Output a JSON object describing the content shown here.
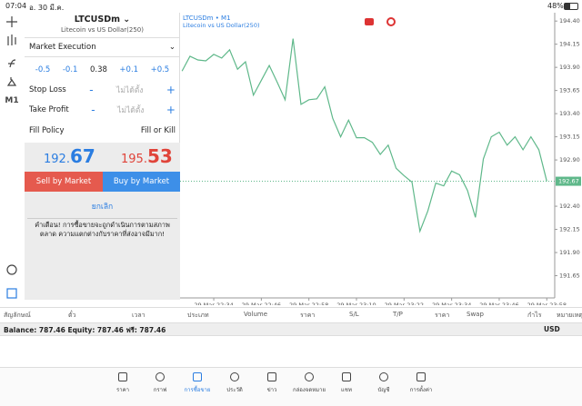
{
  "status_bar": {
    "time": "07:04",
    "date": "อ. 30 มี.ค.",
    "battery": "48%"
  },
  "toolbar": {
    "timeframe": "M1"
  },
  "order_panel": {
    "symbol": "LTCUSDm",
    "description": "Litecoin vs US Dollar(250)",
    "execution": "Market Execution",
    "volume_buttons": [
      "-0.5",
      "-0.1",
      "0.38",
      "+0.1",
      "+0.5"
    ],
    "stop_loss": {
      "label": "Stop Loss",
      "value": "ไม่ได้ตั้ง"
    },
    "take_profit": {
      "label": "Take Profit",
      "value": "ไม่ได้ตั้ง"
    },
    "fill_policy": {
      "label": "Fill Policy",
      "value": "Fill or Kill"
    },
    "bid": {
      "main": "192.",
      "big": "67"
    },
    "ask": {
      "main": "195.",
      "big": "53"
    },
    "sell_button": "Sell by Market",
    "buy_button": "Buy by Market",
    "cancel": "ยกเลิก",
    "warning": "คำเตือน! การซื้อขายจะถูกดำเนินการตามสภาพตลาด ความแตกต่างกับราคาที่ส่งอาจมีมาก!"
  },
  "chart_data": {
    "type": "line",
    "title": "LTCUSDm • M1",
    "subtitle": "Litecoin vs US Dollar(250)",
    "x": [
      1346,
      1348,
      1350,
      1352,
      1354,
      1356,
      1358,
      1360,
      1362,
      1364,
      1366,
      1368,
      1370,
      1372,
      1374,
      1376,
      1378,
      1380,
      1382,
      1384,
      1386,
      1388,
      1390,
      1392,
      1394,
      1396,
      1398,
      1400,
      1402,
      1404,
      1406,
      1408,
      1410,
      1412,
      1414,
      1416,
      1418,
      1420,
      1422,
      1424,
      1426,
      1428,
      1430,
      1432,
      1434,
      1436,
      1438
    ],
    "series": [
      {
        "color": "#5fb88a",
        "values": [
          193.86,
          194.02,
          193.98,
          193.97,
          194.04,
          194.0,
          194.09,
          193.88,
          193.96,
          193.6,
          193.76,
          193.92,
          193.74,
          193.55,
          194.21,
          193.5,
          193.55,
          193.56,
          193.69,
          193.35,
          193.15,
          193.33,
          193.14,
          193.14,
          193.09,
          192.96,
          193.06,
          192.81,
          192.73,
          192.66,
          192.13,
          192.35,
          192.65,
          192.62,
          192.78,
          192.74,
          192.57,
          192.28,
          192.91,
          193.15,
          193.2,
          193.06,
          193.15,
          193.01,
          193.15,
          193.01,
          192.67
        ]
      }
    ],
    "current_price": 192.67,
    "xlim": [
      1345.5,
      1440
    ],
    "xticks": [
      {
        "value": 1354,
        "label": "29 Mar 22:34"
      },
      {
        "value": 1366,
        "label": "29 Mar 22:46"
      },
      {
        "value": 1378,
        "label": "29 Mar 22:58"
      },
      {
        "value": 1390,
        "label": "29 Mar 23:10"
      },
      {
        "value": 1402,
        "label": "29 Mar 23:22"
      },
      {
        "value": 1414,
        "label": "29 Mar 23:34"
      },
      {
        "value": 1426,
        "label": "29 Mar 23:46"
      },
      {
        "value": 1438,
        "label": "29 Mar 23:58"
      }
    ],
    "ylim": [
      191.41,
      194.49
    ],
    "yticks": [
      {
        "value": 194.4,
        "label": "194.40"
      },
      194.15,
      {
        "value": 193.9,
        "label": "193.90"
      },
      193.65,
      {
        "value": 193.4,
        "label": "193.40"
      },
      193.15,
      {
        "value": 192.9,
        "label": "192.90"
      },
      {
        "value": 192.4,
        "label": "192.40"
      },
      192.15,
      {
        "value": 191.9,
        "label": "191.90"
      },
      191.65
    ]
  },
  "positions": {
    "columns": [
      "สัญลักษณ์",
      "ตั๋ว",
      "เวลา",
      "ประเภท",
      "Volume",
      "ราคา",
      "S/L",
      "T/P",
      "ราคา",
      "Swap",
      "กำไร",
      "หมายเหตุ"
    ],
    "balance": "Balance: 787.46 Equity: 787.46 ฟรี: 787.46",
    "currency": "USD"
  },
  "nav": [
    "ราคา",
    "กราฟ",
    "การซื้อขาย",
    "ประวัติ",
    "ข่าว",
    "กล่องจดหมาย",
    "แชท",
    "บัญชี",
    "การตั้งค่า"
  ]
}
